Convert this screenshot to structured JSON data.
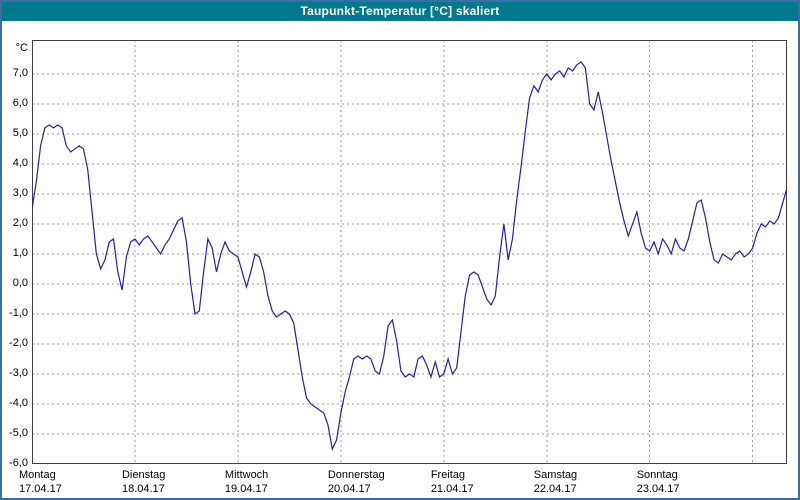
{
  "window": {
    "title": "Taupunkt-Temperatur [°C] skaliert"
  },
  "axes": {
    "unit_label": "°C",
    "y_tick_labels": [
      "7,0",
      "6,0",
      "5,0",
      "4,0",
      "3,0",
      "2,0",
      "1,0",
      "0,0",
      "-1,0",
      "-2,0",
      "-3,0",
      "-4,0",
      "-5,0",
      "-6,0"
    ],
    "y_tick_values": [
      7,
      6,
      5,
      4,
      3,
      2,
      1,
      0,
      -1,
      -2,
      -3,
      -4,
      -5,
      -6
    ],
    "x_ticks": [
      {
        "day": "Montag",
        "date": "17.04.17"
      },
      {
        "day": "Dienstag",
        "date": "18.04.17"
      },
      {
        "day": "Mittwoch",
        "date": "19.04.17"
      },
      {
        "day": "Donnerstag",
        "date": "20.04.17"
      },
      {
        "day": "Freitag",
        "date": "21.04.17"
      },
      {
        "day": "Samstag",
        "date": "22.04.17"
      },
      {
        "day": "Sonntag",
        "date": "23.04.17"
      }
    ]
  },
  "colors": {
    "titlebar_bg": "#00798C",
    "title_text": "#FFFFFF",
    "window_border": "#3A6EA5",
    "line": "#2121AD",
    "grid": "#999999",
    "plot_border": "#404040"
  },
  "chart_data": {
    "type": "line",
    "title": "Taupunkt-Temperatur [°C] skaliert",
    "xlabel": "",
    "ylabel": "°C",
    "ylim": [
      -6,
      8.1
    ],
    "grid": "dashed",
    "legend_position": "none",
    "x_start": "Montag 17.04.17 00:00",
    "x_step_hours": 1,
    "x_tick_labels": [
      "Montag 17.04.17",
      "Dienstag 18.04.17",
      "Mittwoch 19.04.17",
      "Donnerstag 20.04.17",
      "Freitag 21.04.17",
      "Samstag 22.04.17",
      "Sonntag 23.04.17"
    ],
    "series": [
      {
        "name": "Taupunkt-Temperatur",
        "color": "#2121AD",
        "values": [
          2.5,
          3.4,
          4.6,
          5.2,
          5.3,
          5.2,
          5.3,
          5.2,
          4.6,
          4.4,
          4.5,
          4.6,
          4.5,
          3.8,
          2.4,
          1.0,
          0.5,
          0.8,
          1.4,
          1.5,
          0.4,
          -0.2,
          0.9,
          1.4,
          1.5,
          1.3,
          1.5,
          1.6,
          1.4,
          1.2,
          1.0,
          1.3,
          1.5,
          1.8,
          2.1,
          2.2,
          1.4,
          0.0,
          -1.0,
          -0.9,
          0.4,
          1.5,
          1.2,
          0.4,
          1.0,
          1.4,
          1.1,
          1.0,
          0.9,
          0.4,
          -0.1,
          0.4,
          1.0,
          0.9,
          0.4,
          -0.4,
          -0.9,
          -1.1,
          -1.0,
          -0.9,
          -1.0,
          -1.3,
          -2.2,
          -3.1,
          -3.8,
          -4.0,
          -4.1,
          -4.2,
          -4.3,
          -4.7,
          -5.5,
          -5.2,
          -4.3,
          -3.6,
          -3.1,
          -2.5,
          -2.4,
          -2.5,
          -2.4,
          -2.5,
          -2.9,
          -3.0,
          -2.4,
          -1.4,
          -1.2,
          -1.9,
          -2.9,
          -3.1,
          -3.0,
          -3.1,
          -2.5,
          -2.4,
          -2.7,
          -3.1,
          -2.6,
          -3.1,
          -3.0,
          -2.5,
          -3.0,
          -2.8,
          -1.6,
          -0.4,
          0.3,
          0.4,
          0.3,
          -0.1,
          -0.5,
          -0.7,
          -0.4,
          0.9,
          2.0,
          0.8,
          1.5,
          2.8,
          3.9,
          5.1,
          6.2,
          6.6,
          6.4,
          6.8,
          7.0,
          6.8,
          7.0,
          7.1,
          6.9,
          7.2,
          7.1,
          7.3,
          7.4,
          7.2,
          6.0,
          5.8,
          6.4,
          5.7,
          4.9,
          4.1,
          3.4,
          2.7,
          2.1,
          1.6,
          2.0,
          2.4,
          1.7,
          1.2,
          1.1,
          1.4,
          1.0,
          1.5,
          1.3,
          1.0,
          1.5,
          1.2,
          1.1,
          1.5,
          2.1,
          2.7,
          2.8,
          2.2,
          1.4,
          0.8,
          0.7,
          1.0,
          0.9,
          0.8,
          1.0,
          1.1,
          0.9,
          1.0,
          1.2,
          1.7,
          2.0,
          1.9,
          2.1,
          2.0,
          2.2,
          2.7,
          3.2
        ]
      }
    ]
  }
}
